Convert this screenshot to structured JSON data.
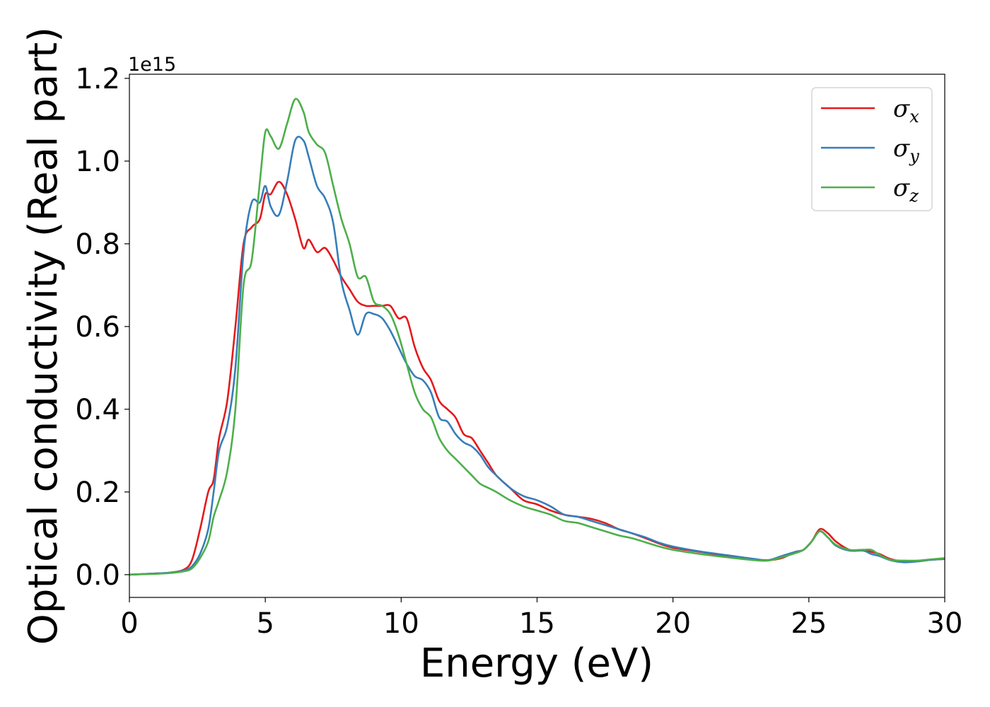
{
  "chart_data": {
    "type": "line",
    "xlabel": "Energy (eV)",
    "ylabel": "Optical conductivity (Real part)",
    "y_offset_label": "1e15",
    "xlim": [
      0,
      30
    ],
    "ylim": [
      -0.055,
      1.21
    ],
    "xticks": [
      0,
      5,
      10,
      15,
      20,
      25,
      30
    ],
    "xtick_labels": [
      "0",
      "5",
      "10",
      "15",
      "20",
      "25",
      "30"
    ],
    "yticks": [
      0.0,
      0.2,
      0.4,
      0.6,
      0.8,
      1.0,
      1.2
    ],
    "ytick_labels": [
      "0.0",
      "0.2",
      "0.4",
      "0.6",
      "0.8",
      "1.0",
      "1.2"
    ],
    "grid": false,
    "legend_position": "top-right",
    "series": [
      {
        "name": "σ",
        "subscript": "x",
        "color": "#e41a1c",
        "x": [
          0,
          1,
          1.5,
          2.0,
          2.3,
          2.6,
          2.9,
          3.1,
          3.3,
          3.6,
          3.9,
          4.2,
          4.5,
          4.8,
          5.0,
          5.2,
          5.5,
          5.8,
          6.1,
          6.4,
          6.6,
          6.9,
          7.2,
          7.5,
          7.8,
          8.1,
          8.4,
          8.7,
          9.0,
          9.3,
          9.6,
          9.9,
          10.2,
          10.5,
          10.8,
          11.1,
          11.4,
          11.7,
          12.0,
          12.3,
          12.6,
          12.9,
          13.2,
          13.5,
          14.0,
          14.5,
          15.0,
          15.5,
          16.0,
          16.5,
          17.0,
          17.5,
          18.0,
          18.5,
          19.0,
          19.5,
          20.0,
          21.0,
          22.0,
          23.0,
          23.5,
          24.0,
          24.5,
          24.8,
          25.1,
          25.4,
          25.7,
          26.0,
          26.5,
          27.0,
          27.3,
          27.6,
          28.0,
          28.5,
          29.0,
          29.5,
          30.0
        ],
        "y": [
          0.0,
          0.003,
          0.005,
          0.012,
          0.035,
          0.11,
          0.2,
          0.23,
          0.33,
          0.42,
          0.6,
          0.8,
          0.84,
          0.86,
          0.92,
          0.92,
          0.95,
          0.92,
          0.86,
          0.79,
          0.81,
          0.78,
          0.79,
          0.76,
          0.72,
          0.69,
          0.66,
          0.65,
          0.65,
          0.65,
          0.65,
          0.62,
          0.62,
          0.55,
          0.5,
          0.47,
          0.42,
          0.4,
          0.38,
          0.34,
          0.33,
          0.3,
          0.27,
          0.24,
          0.21,
          0.18,
          0.17,
          0.155,
          0.145,
          0.14,
          0.135,
          0.125,
          0.11,
          0.1,
          0.088,
          0.075,
          0.065,
          0.055,
          0.045,
          0.037,
          0.035,
          0.04,
          0.055,
          0.06,
          0.08,
          0.11,
          0.1,
          0.08,
          0.06,
          0.06,
          0.055,
          0.05,
          0.038,
          0.032,
          0.033,
          0.036,
          0.038
        ]
      },
      {
        "name": "σ",
        "subscript": "y",
        "color": "#377eb8",
        "x": [
          0,
          1,
          1.5,
          2.0,
          2.3,
          2.6,
          2.9,
          3.1,
          3.3,
          3.6,
          3.9,
          4.2,
          4.5,
          4.8,
          5.0,
          5.2,
          5.5,
          5.8,
          6.1,
          6.4,
          6.6,
          6.9,
          7.2,
          7.5,
          7.8,
          8.1,
          8.4,
          8.7,
          9.0,
          9.3,
          9.6,
          9.9,
          10.2,
          10.5,
          10.8,
          11.1,
          11.4,
          11.7,
          12.0,
          12.3,
          12.6,
          12.9,
          13.2,
          13.5,
          14.0,
          14.5,
          15.0,
          15.5,
          16.0,
          16.5,
          17.0,
          17.5,
          18.0,
          18.5,
          19.0,
          19.5,
          20.0,
          21.0,
          22.0,
          23.0,
          23.5,
          24.0,
          24.5,
          24.8,
          25.1,
          25.4,
          25.7,
          26.0,
          26.5,
          27.0,
          27.3,
          27.6,
          28.0,
          28.5,
          29.0,
          29.5,
          30.0
        ],
        "y": [
          0.0,
          0.003,
          0.005,
          0.01,
          0.02,
          0.05,
          0.11,
          0.2,
          0.3,
          0.36,
          0.5,
          0.78,
          0.9,
          0.9,
          0.94,
          0.89,
          0.87,
          0.95,
          1.05,
          1.05,
          1.01,
          0.94,
          0.91,
          0.85,
          0.71,
          0.64,
          0.58,
          0.63,
          0.63,
          0.62,
          0.59,
          0.55,
          0.51,
          0.48,
          0.47,
          0.44,
          0.38,
          0.37,
          0.34,
          0.32,
          0.31,
          0.29,
          0.26,
          0.24,
          0.21,
          0.19,
          0.18,
          0.165,
          0.145,
          0.14,
          0.13,
          0.12,
          0.11,
          0.1,
          0.09,
          0.077,
          0.068,
          0.056,
          0.047,
          0.038,
          0.035,
          0.045,
          0.055,
          0.06,
          0.08,
          0.105,
          0.09,
          0.07,
          0.058,
          0.058,
          0.05,
          0.045,
          0.035,
          0.03,
          0.032,
          0.036,
          0.038
        ]
      },
      {
        "name": "σ",
        "subscript": "z",
        "color": "#4daf4a",
        "x": [
          0,
          1,
          1.5,
          2.0,
          2.3,
          2.6,
          2.9,
          3.1,
          3.3,
          3.6,
          3.9,
          4.2,
          4.5,
          4.8,
          5.0,
          5.2,
          5.5,
          5.8,
          6.1,
          6.4,
          6.6,
          6.9,
          7.2,
          7.5,
          7.8,
          8.1,
          8.4,
          8.7,
          9.0,
          9.3,
          9.6,
          9.9,
          10.2,
          10.5,
          10.8,
          11.1,
          11.4,
          11.7,
          12.0,
          12.3,
          12.6,
          12.9,
          13.2,
          13.5,
          14.0,
          14.5,
          15.0,
          15.5,
          16.0,
          16.5,
          17.0,
          17.5,
          18.0,
          18.5,
          19.0,
          19.5,
          20.0,
          21.0,
          22.0,
          23.0,
          23.5,
          24.0,
          24.5,
          24.8,
          25.1,
          25.4,
          25.7,
          26.0,
          26.5,
          27.0,
          27.3,
          27.6,
          28.0,
          28.5,
          29.0,
          29.5,
          30.0
        ],
        "y": [
          0.0,
          0.002,
          0.004,
          0.008,
          0.015,
          0.04,
          0.08,
          0.14,
          0.18,
          0.25,
          0.4,
          0.7,
          0.76,
          0.95,
          1.07,
          1.06,
          1.03,
          1.09,
          1.15,
          1.12,
          1.07,
          1.04,
          1.02,
          0.94,
          0.86,
          0.8,
          0.72,
          0.72,
          0.66,
          0.65,
          0.63,
          0.58,
          0.51,
          0.44,
          0.4,
          0.38,
          0.33,
          0.3,
          0.28,
          0.26,
          0.24,
          0.22,
          0.21,
          0.2,
          0.18,
          0.165,
          0.155,
          0.145,
          0.13,
          0.125,
          0.115,
          0.105,
          0.095,
          0.088,
          0.078,
          0.068,
          0.06,
          0.05,
          0.042,
          0.035,
          0.034,
          0.042,
          0.052,
          0.06,
          0.08,
          0.105,
          0.09,
          0.072,
          0.06,
          0.06,
          0.06,
          0.048,
          0.036,
          0.034,
          0.034,
          0.037,
          0.04
        ]
      }
    ]
  }
}
